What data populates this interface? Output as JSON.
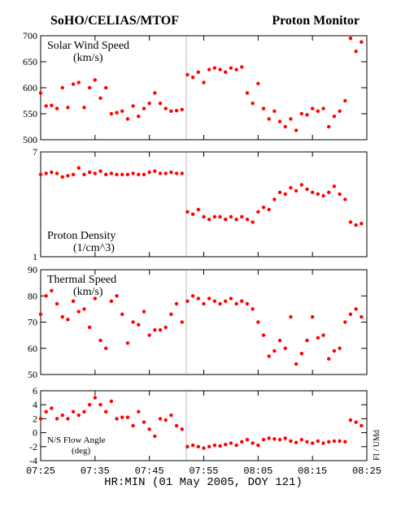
{
  "header": {
    "left": "SoHO/CELIAS/MTOF",
    "right": "Proton Monitor"
  },
  "x_axis": {
    "label": "HR:MIN (01 May 2005, DOY 121)",
    "xlim": [
      0,
      60
    ],
    "xticks": [
      {
        "value": 0,
        "label": "07:25"
      },
      {
        "value": 10,
        "label": "07:35"
      },
      {
        "value": 20,
        "label": "07:45"
      },
      {
        "value": 30,
        "label": "07:55"
      },
      {
        "value": 40,
        "label": "08:05"
      },
      {
        "value": 50,
        "label": "08:15"
      },
      {
        "value": 60,
        "label": "08:25"
      }
    ]
  },
  "credit": "FI / UMd",
  "chart_data": [
    {
      "type": "scatter",
      "title": "Solar Wind Speed",
      "unit": "(km/s)",
      "label_corner": "top-left",
      "color": "#ff0000",
      "log": false,
      "ylim": [
        500,
        700
      ],
      "yticks": [
        500,
        550,
        600,
        650,
        700
      ],
      "x": [
        0,
        1,
        2,
        3,
        4,
        5,
        6,
        7,
        8,
        9,
        10,
        11,
        12,
        13,
        14,
        15,
        16,
        17,
        18,
        19,
        20,
        21,
        22,
        23,
        24,
        25,
        26,
        27,
        28,
        29,
        30,
        31,
        32,
        33,
        34,
        35,
        36,
        37,
        38,
        39,
        40,
        41,
        42,
        43,
        44,
        45,
        46,
        47,
        48,
        49,
        50,
        51,
        52,
        53,
        54,
        55,
        56,
        57,
        58,
        59
      ],
      "values": [
        590,
        565,
        566,
        560,
        600,
        562,
        607,
        610,
        562,
        600,
        615,
        580,
        600,
        550,
        552,
        555,
        540,
        565,
        545,
        560,
        570,
        590,
        570,
        560,
        555,
        556,
        558,
        625,
        620,
        630,
        610,
        635,
        638,
        635,
        630,
        638,
        635,
        640,
        590,
        570,
        608,
        560,
        540,
        555,
        535,
        525,
        540,
        518,
        550,
        548,
        560,
        555,
        560,
        525,
        545,
        555,
        575,
        695,
        670,
        688
      ]
    },
    {
      "type": "scatter",
      "title": "Proton Density",
      "unit": "(1/cm^3)",
      "label_corner": "bottom-left",
      "color": "#ff0000",
      "log": true,
      "ylim": [
        1,
        7
      ],
      "yticks": [
        1,
        7
      ],
      "x": [
        0,
        1,
        2,
        3,
        4,
        5,
        6,
        7,
        8,
        9,
        10,
        11,
        12,
        13,
        14,
        15,
        16,
        17,
        18,
        19,
        20,
        21,
        22,
        23,
        24,
        25,
        26,
        27,
        28,
        29,
        30,
        31,
        32,
        33,
        34,
        35,
        36,
        37,
        38,
        39,
        40,
        41,
        42,
        43,
        44,
        45,
        46,
        47,
        48,
        49,
        50,
        51,
        52,
        53,
        54,
        55,
        56,
        57,
        58,
        59
      ],
      "values": [
        4.6,
        4.7,
        4.8,
        4.7,
        4.4,
        4.5,
        4.6,
        5.2,
        4.6,
        4.8,
        4.7,
        4.9,
        4.6,
        4.7,
        4.6,
        4.6,
        4.6,
        4.7,
        4.6,
        4.6,
        4.8,
        4.9,
        4.7,
        4.7,
        4.8,
        4.7,
        4.7,
        2.3,
        2.2,
        2.4,
        2.1,
        2.0,
        2.1,
        2.1,
        2.0,
        2.1,
        2.0,
        2.1,
        2.0,
        1.9,
        2.3,
        2.5,
        2.4,
        2.9,
        3.3,
        3.2,
        3.6,
        3.4,
        3.8,
        3.5,
        3.3,
        3.2,
        3.1,
        3.3,
        3.7,
        3.2,
        2.9,
        1.9,
        1.8,
        1.85
      ]
    },
    {
      "type": "scatter",
      "title": "Thermal Speed",
      "unit": "(km/s)",
      "label_corner": "top-left",
      "color": "#ff0000",
      "log": false,
      "ylim": [
        50,
        90
      ],
      "yticks": [
        50,
        60,
        70,
        80,
        90
      ],
      "x": [
        0,
        1,
        2,
        3,
        4,
        5,
        6,
        7,
        8,
        9,
        10,
        11,
        12,
        13,
        14,
        15,
        16,
        17,
        18,
        19,
        20,
        21,
        22,
        23,
        24,
        25,
        26,
        27,
        28,
        29,
        30,
        31,
        32,
        33,
        34,
        35,
        36,
        37,
        38,
        39,
        40,
        41,
        42,
        43,
        44,
        45,
        46,
        47,
        48,
        49,
        50,
        51,
        52,
        53,
        54,
        55,
        56,
        57,
        58,
        59
      ],
      "values": [
        73,
        80,
        82,
        77,
        72,
        71,
        78,
        74,
        75,
        68,
        79,
        63,
        60,
        78,
        80,
        73,
        62,
        70,
        69,
        74,
        65,
        67,
        67,
        68,
        73,
        77,
        70,
        78,
        80,
        79,
        77,
        79,
        78,
        77,
        78,
        79,
        77,
        78,
        77,
        75,
        70,
        65,
        57,
        59,
        63,
        60,
        72,
        54,
        58,
        63,
        72,
        64,
        65,
        56,
        59,
        60,
        70,
        73,
        75,
        72
      ]
    },
    {
      "type": "scatter",
      "title": "N/S Flow Angle",
      "unit": "(deg)",
      "label_corner": "bottom-left",
      "color": "#ff0000",
      "log": false,
      "ylim": [
        -4,
        6
      ],
      "yticks": [
        -4,
        -2,
        0,
        2,
        4,
        6
      ],
      "x": [
        0,
        1,
        2,
        3,
        4,
        5,
        6,
        7,
        8,
        9,
        10,
        11,
        12,
        13,
        14,
        15,
        16,
        17,
        18,
        19,
        20,
        21,
        22,
        23,
        24,
        25,
        26,
        27,
        28,
        29,
        30,
        31,
        32,
        33,
        34,
        35,
        36,
        37,
        38,
        39,
        40,
        41,
        42,
        43,
        44,
        45,
        46,
        47,
        48,
        49,
        50,
        51,
        52,
        53,
        54,
        55,
        56,
        57,
        58,
        59
      ],
      "values": [
        2,
        3,
        3.5,
        2,
        2.5,
        2,
        3,
        2.5,
        3,
        4,
        5,
        4,
        3,
        4.5,
        2,
        2.2,
        2.2,
        1,
        3,
        1.5,
        0.5,
        -0.5,
        2,
        1.8,
        2.5,
        1,
        0.5,
        -2,
        -1.8,
        -2,
        -2.2,
        -2,
        -1.8,
        -1.9,
        -1.7,
        -1.5,
        -1.8,
        -1.3,
        -1,
        -1.5,
        -1.8,
        -1,
        -0.8,
        -0.9,
        -1,
        -0.8,
        -1.2,
        -1.4,
        -1,
        -1.3,
        -1.5,
        -1.2,
        -1.5,
        -1.3,
        -1.2,
        -1.2,
        -1.3,
        1.8,
        1.5,
        1
      ]
    }
  ]
}
